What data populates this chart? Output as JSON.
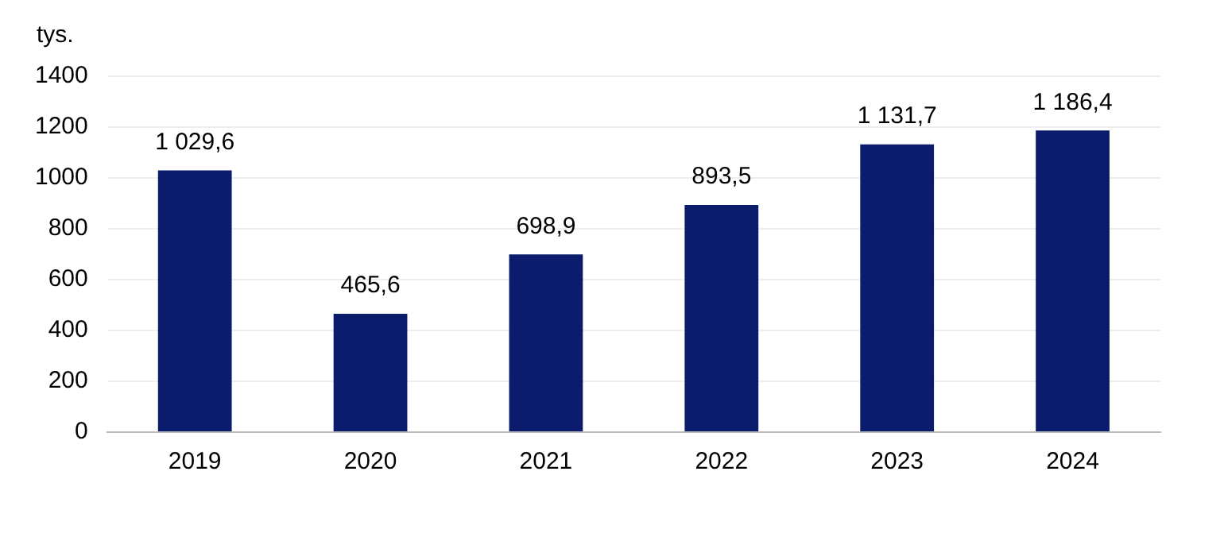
{
  "chart_data": {
    "type": "bar",
    "ylabel": "tys.",
    "categories": [
      "2019",
      "2020",
      "2021",
      "2022",
      "2023",
      "2024"
    ],
    "values": [
      1029.6,
      465.6,
      698.9,
      893.5,
      1131.7,
      1186.4
    ],
    "value_labels": [
      "1 029,6",
      "465,6",
      "698,9",
      "893,5",
      "1 131,7",
      "1 186,4"
    ],
    "color": "#0b1c6c",
    "ylim": [
      0,
      1400
    ],
    "yticks": [
      0,
      200,
      400,
      600,
      800,
      1000,
      1200,
      1400
    ],
    "grid": "y",
    "legend": false
  }
}
